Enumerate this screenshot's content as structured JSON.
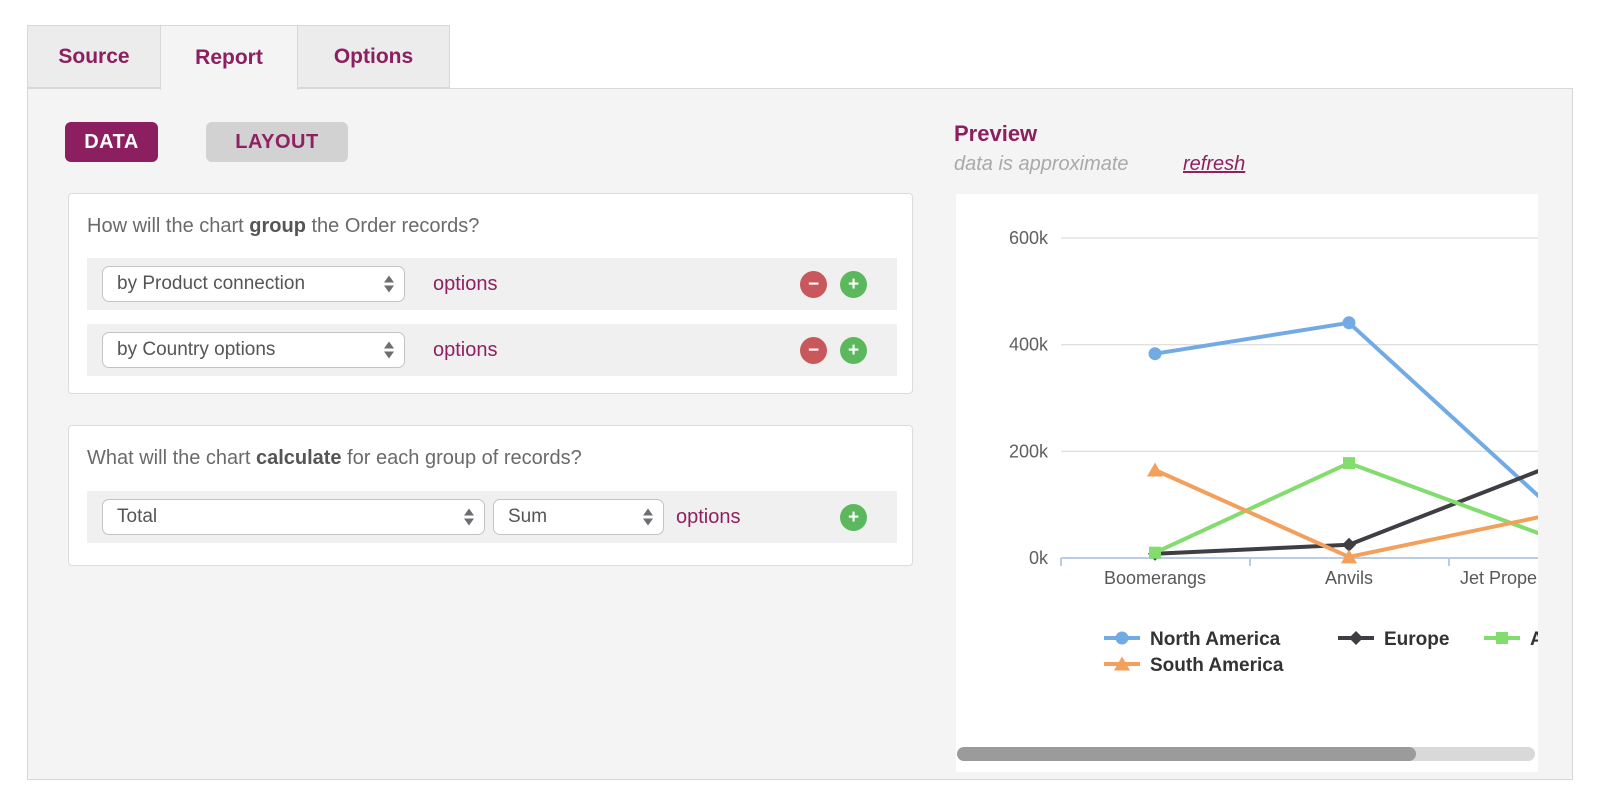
{
  "tabs": [
    {
      "label": "Source",
      "active": false
    },
    {
      "label": "Report",
      "active": true
    },
    {
      "label": "Options",
      "active": false
    }
  ],
  "toolbar": {
    "data_label": "DATA",
    "layout_label": "LAYOUT"
  },
  "icons": {
    "minus": "−",
    "plus": "+"
  },
  "group_section": {
    "question": {
      "prefix": "How will the chart ",
      "bold": "group",
      "suffix": " the Order records?"
    },
    "rows": [
      {
        "select_value": "by Product connection",
        "options_label": "options"
      },
      {
        "select_value": "by Country options",
        "options_label": "options"
      }
    ]
  },
  "calculate_section": {
    "question": {
      "prefix": "What will the chart ",
      "bold": "calculate",
      "suffix": " for each group of records?"
    },
    "row": {
      "field_value": "Total",
      "aggregate_value": "Sum",
      "options_label": "options"
    }
  },
  "preview": {
    "title": "Preview",
    "subtitle": "data is approximate",
    "refresh_label": "refresh"
  },
  "chart_data": {
    "type": "line",
    "categories": [
      "Boomerangs",
      "Anvils",
      "Jet Prope"
    ],
    "series": [
      {
        "name": "North America",
        "color": "#72abe3",
        "marker": "circle",
        "values": [
          383000,
          441000,
          100000
        ]
      },
      {
        "name": "Europe",
        "color": "#3e3e44",
        "marker": "diamond",
        "values": [
          8000,
          25000,
          170000
        ]
      },
      {
        "name": "Asia",
        "color": "#82dd6e",
        "marker": "square",
        "values": [
          10000,
          178000,
          40000
        ]
      },
      {
        "name": "South America",
        "color": "#f2a05c",
        "marker": "triangle",
        "values": [
          165000,
          2000,
          80000
        ]
      }
    ],
    "yticks": [
      {
        "v": 0,
        "label": "0k"
      },
      {
        "v": 200000,
        "label": "200k"
      },
      {
        "v": 400000,
        "label": "400k"
      },
      {
        "v": 600000,
        "label": "600k"
      }
    ],
    "ylim": [
      0,
      600000
    ],
    "grid": true,
    "legend_position": "bottom",
    "clipped_right": true
  },
  "colors": {
    "accent": "#8b1f5f",
    "remove_red": "#c9585c",
    "add_green": "#5cb85c",
    "axis_blue": "#b9cce3",
    "gridline": "#d6d6d6"
  }
}
